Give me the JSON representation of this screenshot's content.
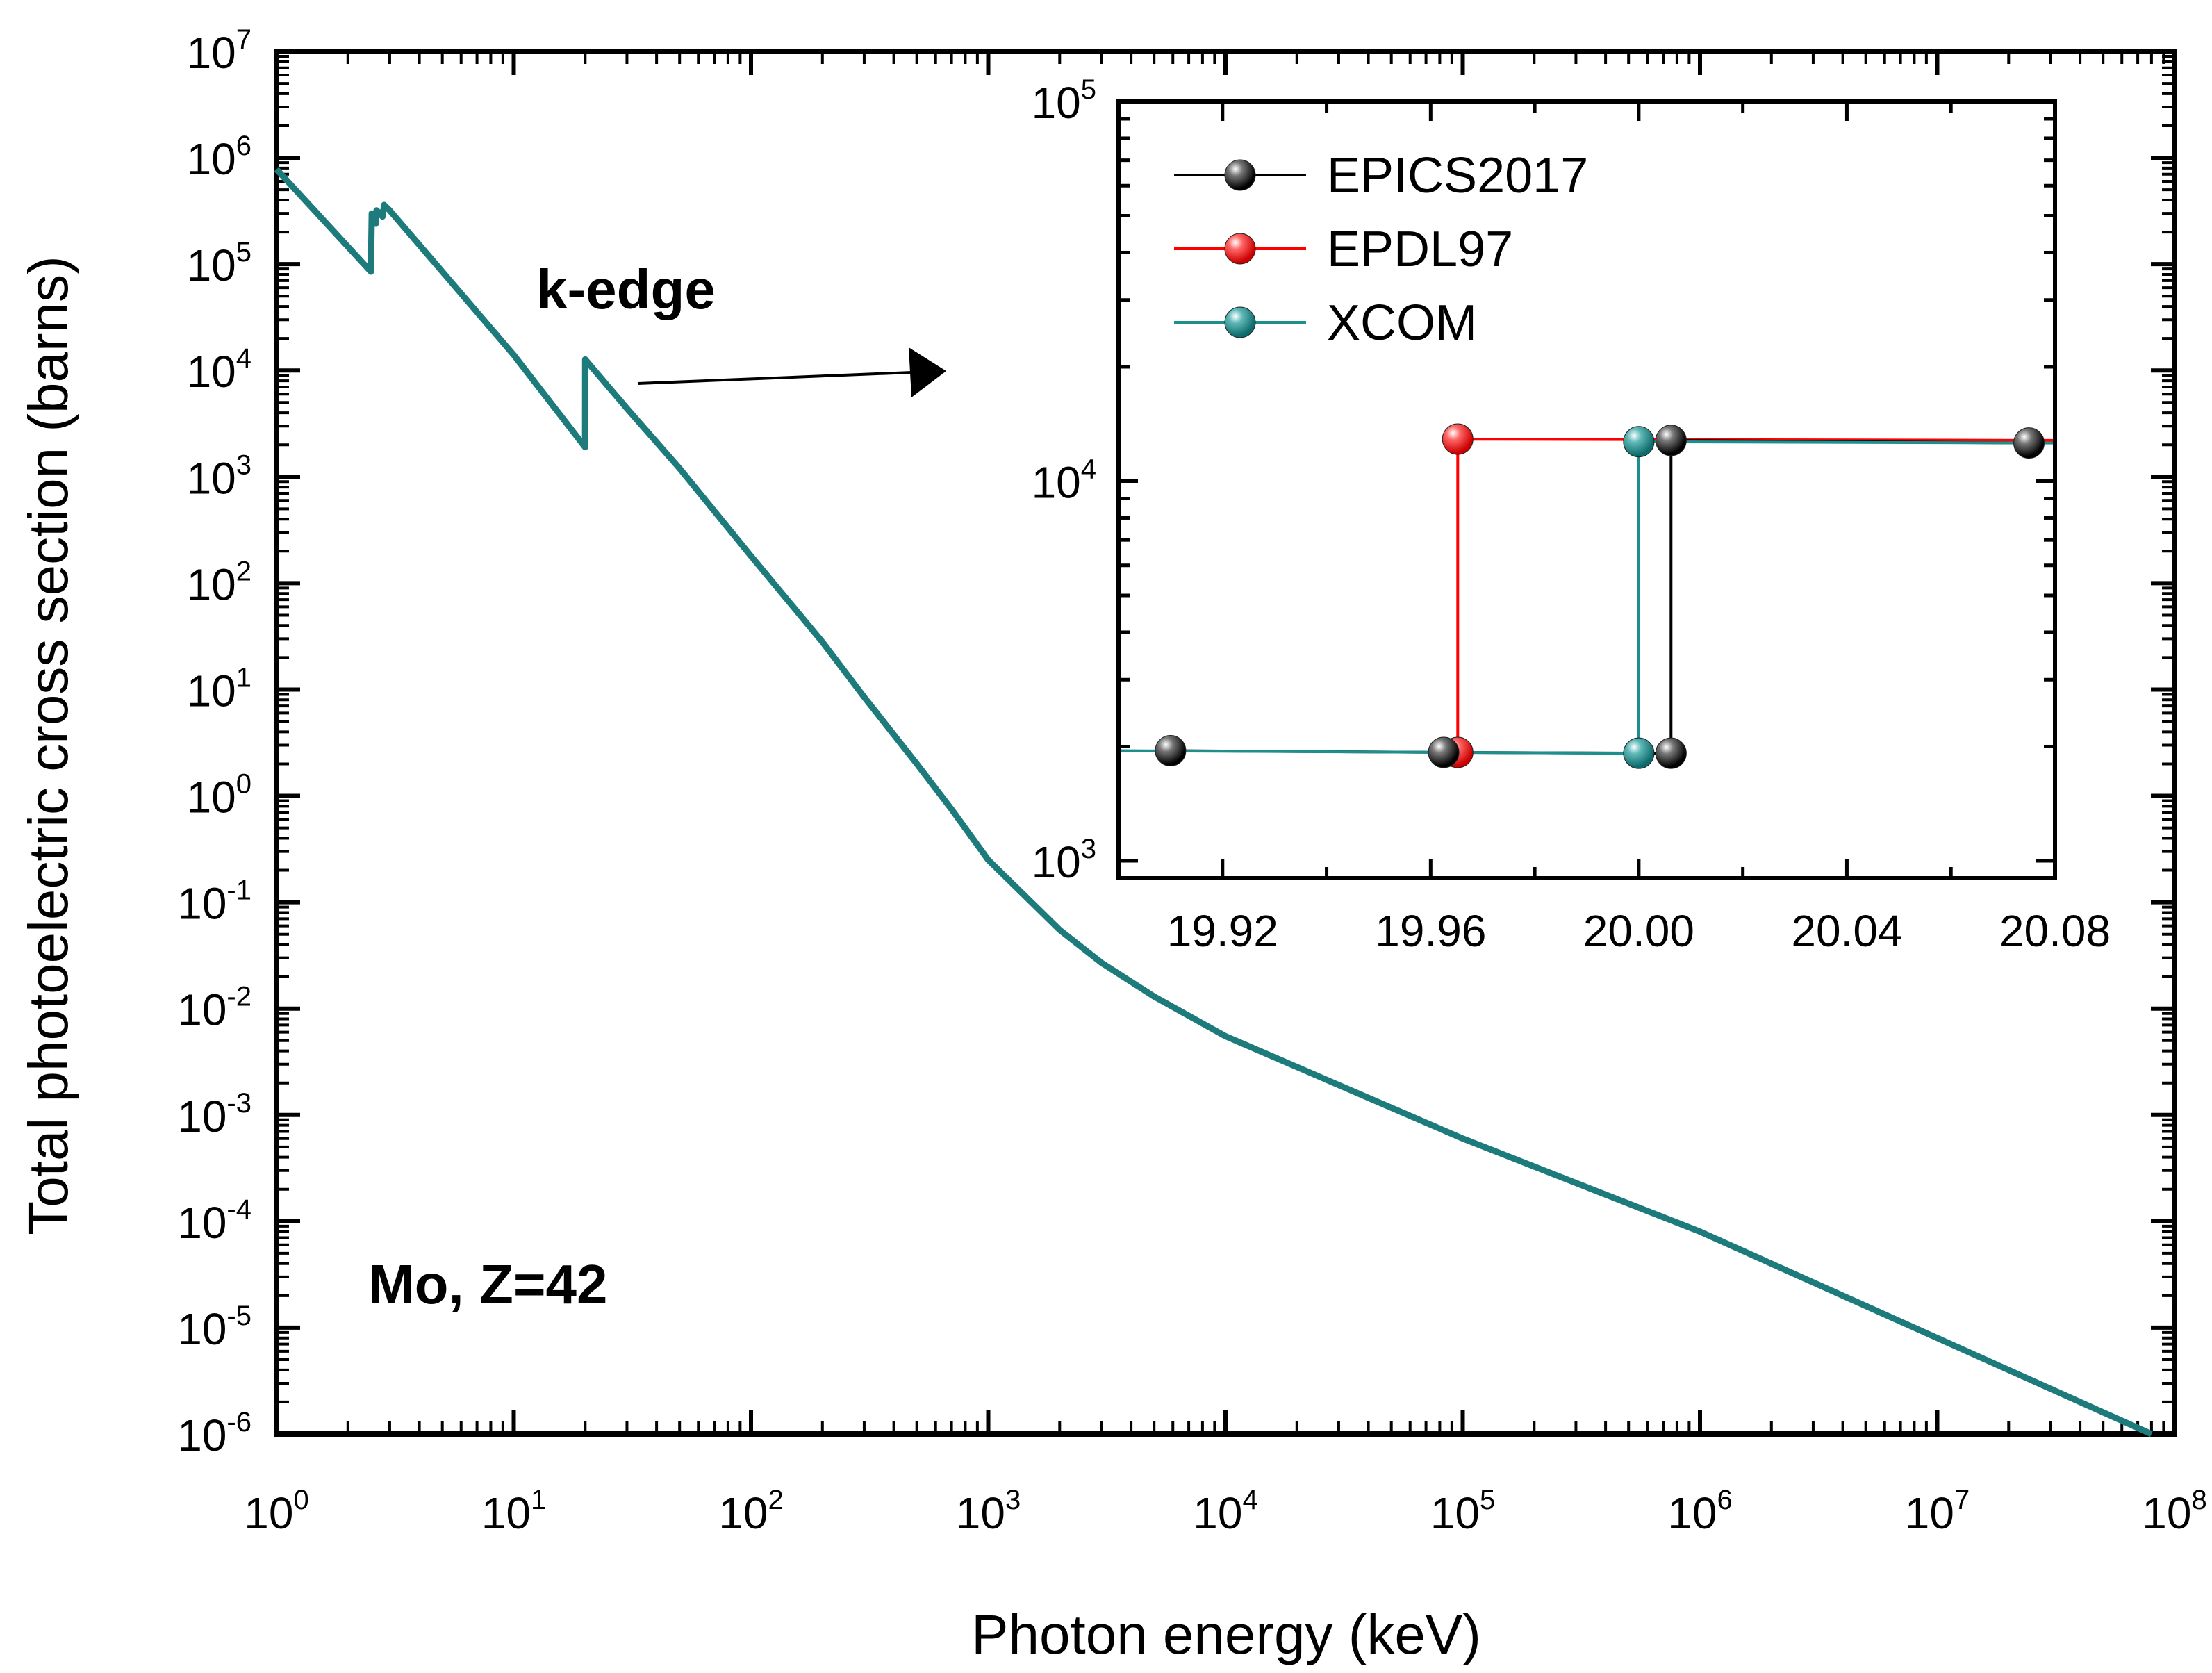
{
  "chart_data": [
    {
      "type": "line",
      "title": "",
      "xlabel": "Photon energy (keV)",
      "ylabel": "Total photoelectric cross section (barns)",
      "x_scale": "log",
      "y_scale": "log",
      "xlim": [
        1,
        100000000
      ],
      "ylim": [
        1e-06,
        10000000
      ],
      "x_ticks": [
        {
          "base": "10",
          "exp": "0"
        },
        {
          "base": "10",
          "exp": "1"
        },
        {
          "base": "10",
          "exp": "2"
        },
        {
          "base": "10",
          "exp": "3"
        },
        {
          "base": "10",
          "exp": "4"
        },
        {
          "base": "10",
          "exp": "5"
        },
        {
          "base": "10",
          "exp": "6"
        },
        {
          "base": "10",
          "exp": "7"
        },
        {
          "base": "10",
          "exp": "8"
        }
      ],
      "y_ticks": [
        {
          "base": "10",
          "exp": "-6"
        },
        {
          "base": "10",
          "exp": "-5"
        },
        {
          "base": "10",
          "exp": "-4"
        },
        {
          "base": "10",
          "exp": "-3"
        },
        {
          "base": "10",
          "exp": "-2"
        },
        {
          "base": "10",
          "exp": "-1"
        },
        {
          "base": "10",
          "exp": "0"
        },
        {
          "base": "10",
          "exp": "1"
        },
        {
          "base": "10",
          "exp": "2"
        },
        {
          "base": "10",
          "exp": "3"
        },
        {
          "base": "10",
          "exp": "4"
        },
        {
          "base": "10",
          "exp": "5"
        },
        {
          "base": "10",
          "exp": "6"
        },
        {
          "base": "10",
          "exp": "7"
        }
      ],
      "annotations": [
        "k-edge",
        "Mo,  Z=42"
      ],
      "series": [
        {
          "name": "XCOM",
          "color": "#1e7b7b",
          "x": [
            1,
            2.5,
            2.52,
            2.62,
            2.64,
            2.8,
            2.84,
            3.0,
            5,
            10,
            19.99,
            20.0,
            30,
            50,
            100,
            200,
            300,
            500,
            700,
            1000,
            2000,
            3000,
            5000,
            10000,
            100000,
            1000000,
            10000000,
            80000000
          ],
          "y": [
            780000,
            85000,
            300000,
            240000,
            320000,
            280000,
            360000,
            320000,
            85000,
            14000,
            1900,
            12700,
            4400,
            1200,
            180,
            28,
            8.5,
            2.0,
            0.75,
            0.25,
            0.055,
            0.027,
            0.013,
            0.0055,
            0.0006,
            8e-05,
            8e-06,
            1e-06
          ]
        }
      ]
    },
    {
      "type": "line",
      "title": "",
      "xlabel": "",
      "ylabel": "",
      "x_scale": "linear",
      "y_scale": "log",
      "xlim": [
        19.9,
        20.08
      ],
      "ylim": [
        900,
        100000
      ],
      "x_ticks": [
        "19.92",
        "19.96",
        "20.00",
        "20.04",
        "20.08"
      ],
      "y_ticks": [
        {
          "base": "10",
          "exp": "3"
        },
        {
          "base": "10",
          "exp": "4"
        },
        {
          "base": "10",
          "exp": "5"
        }
      ],
      "legend_position": "top-left",
      "series": [
        {
          "name": "EPICS2017",
          "color": "#000000",
          "x": [
            19.91,
            19.9625,
            20.0062,
            20.0062,
            20.075
          ],
          "y": [
            1950,
            1930,
            1920,
            12800,
            12600
          ]
        },
        {
          "name": "EPDL97",
          "color": "#ff0000",
          "x": [
            19.9652,
            19.9652,
            20.08
          ],
          "y": [
            1930,
            12900,
            12800
          ]
        },
        {
          "name": "XCOM",
          "color": "#1e8f8f",
          "x": [
            19.9,
            20.0,
            20.0,
            20.08
          ],
          "y": [
            1950,
            1920,
            12700,
            12600
          ]
        }
      ]
    }
  ]
}
